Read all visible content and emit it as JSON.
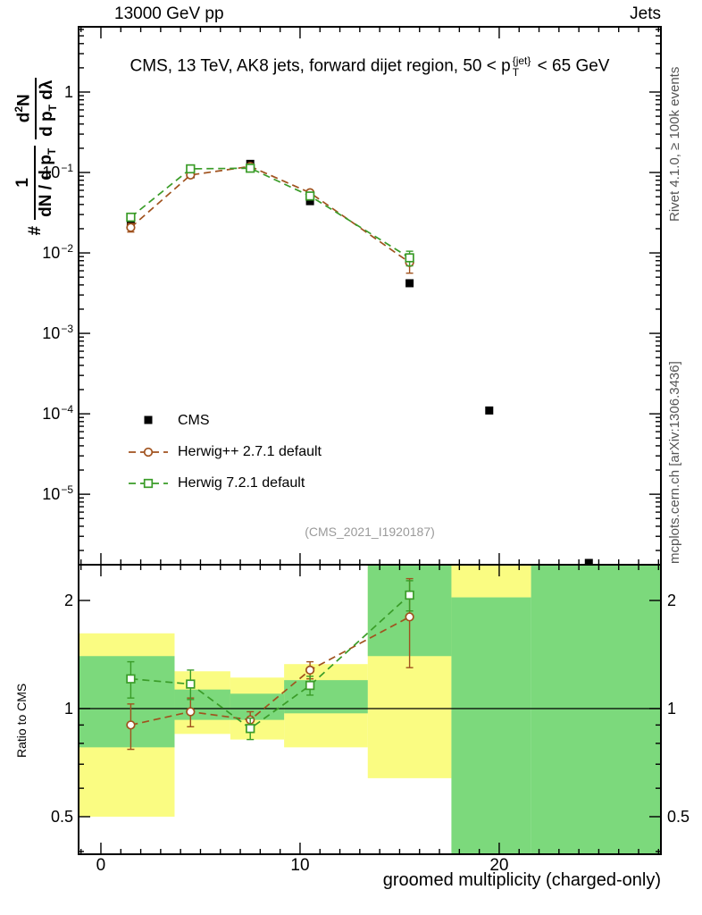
{
  "header": {
    "left": "13000 GeV pp",
    "right": "Jets"
  },
  "title": {
    "part1": "CMS, 13 TeV, AK8 jets, forward dijet region, 50 < p",
    "p_sup": "{jet}",
    "p_sub": "T",
    "part2": " < 65 GeV"
  },
  "ylabel_main": {
    "hash": "#",
    "frac1_num": "1",
    "frac1_den_main": "dN / d p",
    "frac1_den_sub": "T",
    "frac2_num_a": "d",
    "frac2_num_sup": "2",
    "frac2_num_b": "N",
    "frac2_den_a": "d p",
    "frac2_den_sub": "T",
    "frac2_den_b": " dλ"
  },
  "ylabel_ratio": "Ratio to CMS",
  "xlabel": "groomed multiplicity (charged-only)",
  "watermark": "(CMS_2021_I1920187)",
  "side_texts": {
    "rivet": "Rivet 4.1.0, ≥ 100k events",
    "mcplots": "mcplots.cern.ch [arXiv:1306.3436]"
  },
  "legend": [
    {
      "label": "CMS",
      "marker": "filled-square",
      "color": "#000000",
      "dashed": false
    },
    {
      "label": "Herwig++ 2.7.1 default",
      "marker": "open-circle",
      "color": "#a0521e",
      "dashed": true
    },
    {
      "label": "Herwig 7.2.1 default",
      "marker": "open-square",
      "color": "#3a9c28",
      "dashed": true
    }
  ],
  "chart_data": {
    "type": "line",
    "title": "CMS, 13 TeV, AK8 jets, forward dijet region, 50 < p_T^{jet} < 65 GeV",
    "xlabel": "groomed multiplicity (charged-only)",
    "ylabel": "# 1/(dN/dp_T) d^2N/(dp_T dlambda)",
    "legend_position": "inside-left-lower",
    "grid": false,
    "axes": {
      "xlim": [
        -1.12,
        28.12
      ],
      "x_ticks": [
        {
          "v": 0,
          "label": "0"
        },
        {
          "v": 10,
          "label": "10"
        },
        {
          "v": 20,
          "label": "20"
        }
      ],
      "x_minor_step": 1,
      "main_ylim": [
        1.33e-06,
        6.47
      ],
      "main_y_ticks": [
        {
          "v": 1,
          "base": "1",
          "exp": ""
        },
        {
          "v": 0.1,
          "base": "10",
          "exp": "−1"
        },
        {
          "v": 0.01,
          "base": "10",
          "exp": "−2"
        },
        {
          "v": 0.001,
          "base": "10",
          "exp": "−3"
        },
        {
          "v": 0.0001,
          "base": "10",
          "exp": "−4"
        },
        {
          "v": 1e-05,
          "base": "10",
          "exp": "−5"
        }
      ],
      "ratio_ylim": [
        0.393,
        2.515
      ],
      "ratio_y_ticks": [
        {
          "v": 0.5,
          "label": "0.5"
        },
        {
          "v": 1,
          "label": "1"
        },
        {
          "v": 2,
          "label": "2"
        }
      ],
      "ratio_y_minor": [
        0.4,
        0.6,
        0.7,
        0.8,
        0.9
      ]
    },
    "x": [
      1.5,
      4.5,
      7.5,
      10.5,
      15.5,
      19.5,
      24.5
    ],
    "series": [
      {
        "name": "CMS",
        "marker": "filled-square",
        "color": "#000000",
        "line": false,
        "y": [
          0.023,
          0.095,
          0.128,
          0.044,
          0.0042,
          0.00011,
          1.4e-06
        ],
        "yerr_lo": [
          0,
          0,
          0,
          0,
          0,
          0,
          0
        ],
        "yerr_hi": [
          0,
          0,
          0,
          0,
          0,
          0,
          0
        ]
      },
      {
        "name": "Herwig++ 2.7.1 default",
        "marker": "open-circle",
        "color": "#a0521e",
        "line": true,
        "y": [
          0.0207,
          0.093,
          0.119,
          0.056,
          0.0076,
          null,
          null
        ],
        "yerr_lo": [
          0.0025,
          0.004,
          0.005,
          0.003,
          0.002,
          null,
          null
        ],
        "yerr_hi": [
          0.0025,
          0.004,
          0.005,
          0.003,
          0.002,
          null,
          null
        ]
      },
      {
        "name": "Herwig 7.2.1 default",
        "marker": "open-square",
        "color": "#3a9c28",
        "line": true,
        "y": [
          0.0278,
          0.111,
          0.113,
          0.051,
          0.0087,
          null,
          null
        ],
        "yerr_lo": [
          0.002,
          0.004,
          0.004,
          0.0025,
          0.0018,
          null,
          null
        ],
        "yerr_hi": [
          0.002,
          0.004,
          0.004,
          0.0025,
          0.0018,
          null,
          null
        ]
      }
    ],
    "ratio": {
      "reference": "CMS",
      "series": [
        {
          "name": "Herwig++ 2.7.1 default",
          "marker": "open-circle",
          "color": "#a0521e",
          "y": [
            0.9,
            0.98,
            0.93,
            1.28,
            1.8
          ],
          "yerr_lo": [
            0.13,
            0.09,
            0.05,
            0.07,
            0.5
          ],
          "yerr_hi": [
            0.13,
            0.09,
            0.05,
            0.07,
            0.5
          ]
        },
        {
          "name": "Herwig 7.2.1 default",
          "marker": "open-square",
          "color": "#3a9c28",
          "y": [
            1.21,
            1.17,
            0.88,
            1.16,
            2.07
          ],
          "yerr_lo": [
            0.14,
            0.11,
            0.06,
            0.07,
            0.2
          ],
          "yerr_hi": [
            0.14,
            0.11,
            0.06,
            0.07,
            0.2
          ]
        }
      ],
      "bands": {
        "yellow_color": "#fafc82",
        "green_color": "#7cd97c",
        "yellow": [
          {
            "x1": -1.12,
            "x2": 3.7,
            "y1": 0.5,
            "y2": 1.62
          },
          {
            "x1": 3.7,
            "x2": 6.5,
            "y1": 0.85,
            "y2": 1.27
          },
          {
            "x1": 6.5,
            "x2": 9.2,
            "y1": 0.82,
            "y2": 1.22
          },
          {
            "x1": 9.2,
            "x2": 13.4,
            "y1": 0.78,
            "y2": 1.33
          },
          {
            "x1": 13.4,
            "x2": 17.6,
            "y1": 0.64,
            "y2": 2.515
          },
          {
            "x1": 17.6,
            "x2": 21.6,
            "y1": 2.04,
            "y2": 2.515
          }
        ],
        "green": [
          {
            "x1": -1.12,
            "x2": 3.7,
            "y1": 0.78,
            "y2": 1.4
          },
          {
            "x1": 3.7,
            "x2": 6.5,
            "y1": 0.93,
            "y2": 1.13
          },
          {
            "x1": 6.5,
            "x2": 9.2,
            "y1": 0.93,
            "y2": 1.1
          },
          {
            "x1": 9.2,
            "x2": 13.4,
            "y1": 0.97,
            "y2": 1.2
          },
          {
            "x1": 13.4,
            "x2": 17.6,
            "y1": 1.4,
            "y2": 2.515
          },
          {
            "x1": 17.6,
            "x2": 21.6,
            "y1": 0.393,
            "y2": 2.04
          },
          {
            "x1": 21.6,
            "x2": 28.12,
            "y1": 0.393,
            "y2": 2.515
          }
        ]
      }
    }
  }
}
